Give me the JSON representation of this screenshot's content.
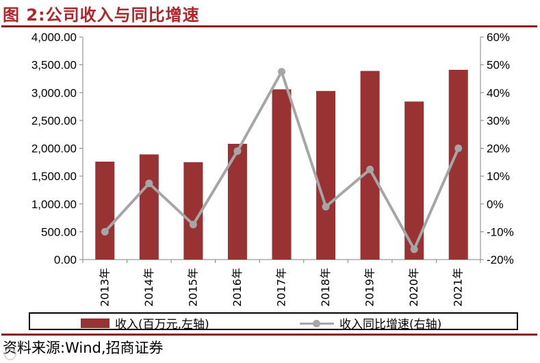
{
  "figure": {
    "title": "图 2:公司收入与同比增速",
    "source": "资料来源:Wind,招商证券"
  },
  "colors": {
    "title": "#b0242a",
    "rule": "#8b1a1a",
    "bar": "#993333",
    "line": "#a6a6a6"
  },
  "chart_data": {
    "type": "bar",
    "categories": [
      "2013年",
      "2014年",
      "2015年",
      "2016年",
      "2017年",
      "2018年",
      "2019年",
      "2020年",
      "2021年"
    ],
    "series": [
      {
        "name": "收入(百万元,左轴)",
        "type": "bar",
        "axis": "left",
        "values": [
          1760,
          1890,
          1750,
          2080,
          3060,
          3030,
          3390,
          2840,
          3410
        ]
      },
      {
        "name": "收入同比增速(右轴)",
        "type": "line",
        "axis": "right",
        "values": [
          -10,
          7.4,
          -7.4,
          19,
          47.5,
          -1,
          12.4,
          -16.3,
          20
        ]
      }
    ],
    "y_left": {
      "ylim": [
        0,
        4000
      ],
      "ticks": [
        0,
        500,
        1000,
        1500,
        2000,
        2500,
        3000,
        3500,
        4000
      ],
      "tick_labels": [
        "0.00",
        "500.00",
        "1,000.00",
        "1,500.00",
        "2,000.00",
        "2,500.00",
        "3,000.00",
        "3,500.00",
        "4,000.00"
      ]
    },
    "y_right": {
      "ylim": [
        -20,
        60
      ],
      "ticks": [
        -20,
        -10,
        0,
        10,
        20,
        30,
        40,
        50,
        60
      ],
      "tick_labels": [
        "-20%",
        "-10%",
        "0%",
        "10%",
        "20%",
        "30%",
        "40%",
        "50%",
        "60%"
      ]
    },
    "grid": false,
    "legend": "bottom"
  }
}
